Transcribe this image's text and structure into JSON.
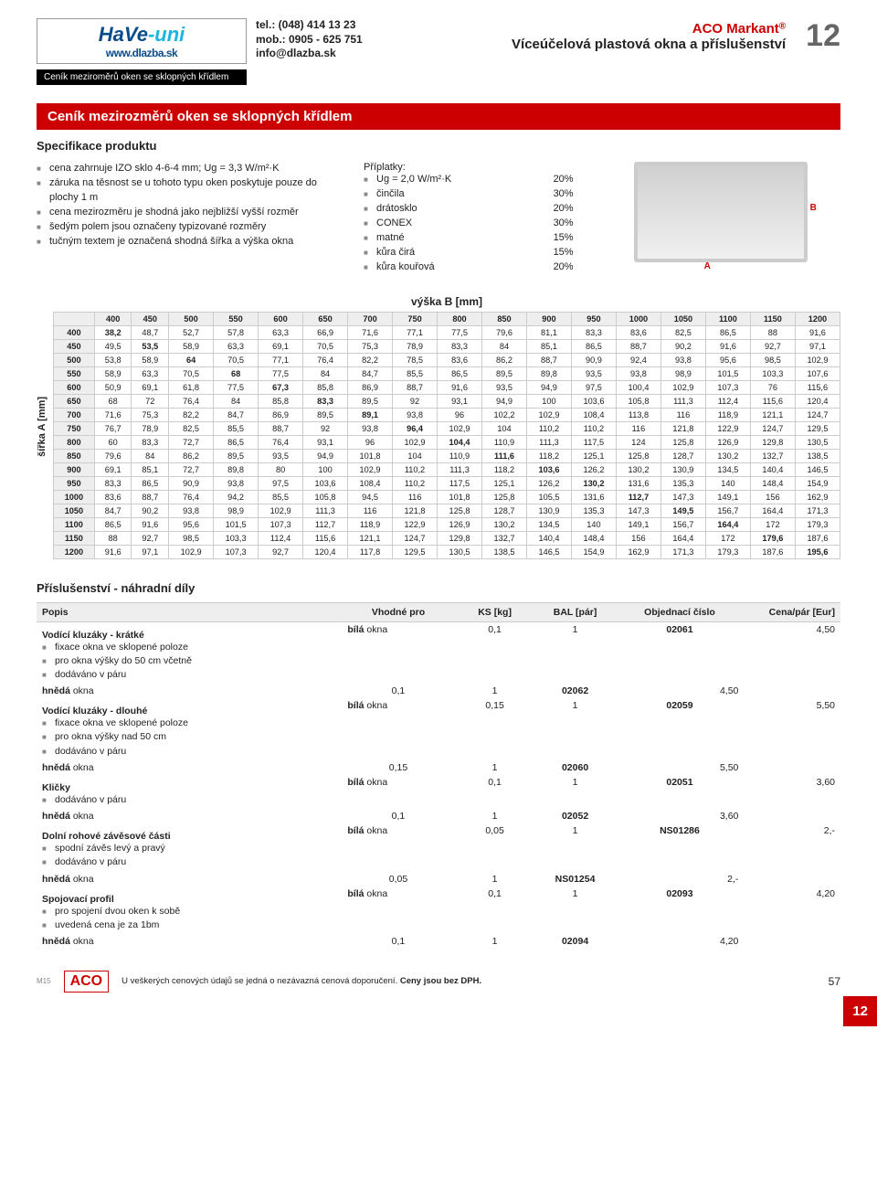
{
  "pageNumberLarge": "12",
  "pageNumberSmall": "57",
  "sideTab": "12",
  "editionCode": "M15",
  "header": {
    "logoMain": "HaVe",
    "logoSuffix": "-uni",
    "website": "www.dlazba.sk",
    "tel": "tel.: (048) 414 13 23",
    "mob": "mob.: 0905 - 625 751",
    "email": "info@dlazba.sk",
    "blackBand": "Ceník meziroměrů oken se sklopných křídlem",
    "brand": "ACO Markant",
    "brandReg": "®",
    "subtitle": "Víceúčelová plastová okna a příslušenství"
  },
  "redBand": "Ceník mezirozměrů oken se sklopných křídlem",
  "spec": {
    "title": "Specifikace produktu",
    "left": [
      "cena zahrnuje IZO sklo 4-6-4 mm; Ug = 3,3 W/m²·K",
      "záruka na těsnost se u tohoto typu oken poskytuje pouze do plochy 1 m",
      "cena mezirozměru je shodná jako nejbližší vyšší rozměr",
      "šedým polem jsou označeny typizované rozměry",
      "tučným textem je označená shodná šířka a výška okna"
    ],
    "surchargeTitle": "Příplatky:",
    "surcharges": [
      {
        "label": "Ug = 2,0 W/m²·K",
        "pct": "20%"
      },
      {
        "label": "činčila",
        "pct": "30%"
      },
      {
        "label": "drátosklo",
        "pct": "20%"
      },
      {
        "label": "CONEX",
        "pct": "30%"
      },
      {
        "label": "matné",
        "pct": "15%"
      },
      {
        "label": "kůra čirá",
        "pct": "15%"
      },
      {
        "label": "kůra kouřová",
        "pct": "20%"
      }
    ],
    "dimA": "A",
    "dimB": "B"
  },
  "priceTable": {
    "caption": "výška B [mm]",
    "rowAxisLabel": "šířka A [mm]",
    "colHeaders": [
      "400",
      "450",
      "500",
      "550",
      "600",
      "650",
      "700",
      "750",
      "800",
      "850",
      "900",
      "950",
      "1000",
      "1050",
      "1100",
      "1150",
      "1200"
    ],
    "rowHeaders": [
      "400",
      "450",
      "500",
      "550",
      "600",
      "650",
      "700",
      "750",
      "800",
      "850",
      "900",
      "950",
      "1000",
      "1050",
      "1100",
      "1150",
      "1200"
    ],
    "rows": [
      [
        "38,2",
        "48,7",
        "52,7",
        "57,8",
        "63,3",
        "66,9",
        "71,6",
        "77,1",
        "77,5",
        "79,6",
        "81,1",
        "83,3",
        "83,6",
        "82,5",
        "86,5",
        "88",
        "91,6"
      ],
      [
        "49,5",
        "53,5",
        "58,9",
        "63,3",
        "69,1",
        "70,5",
        "75,3",
        "78,9",
        "83,3",
        "84",
        "85,1",
        "86,5",
        "88,7",
        "90,2",
        "91,6",
        "92,7",
        "97,1"
      ],
      [
        "53,8",
        "58,9",
        "64",
        "70,5",
        "77,1",
        "76,4",
        "82,2",
        "78,5",
        "83,6",
        "86,2",
        "88,7",
        "90,9",
        "92,4",
        "93,8",
        "95,6",
        "98,5",
        "102,9"
      ],
      [
        "58,9",
        "63,3",
        "70,5",
        "68",
        "77,5",
        "84",
        "84,7",
        "85,5",
        "86,5",
        "89,5",
        "89,8",
        "93,5",
        "93,8",
        "98,9",
        "101,5",
        "103,3",
        "107,6"
      ],
      [
        "50,9",
        "69,1",
        "61,8",
        "77,5",
        "67,3",
        "85,8",
        "86,9",
        "88,7",
        "91,6",
        "93,5",
        "94,9",
        "97,5",
        "100,4",
        "102,9",
        "107,3",
        "76",
        "115,6"
      ],
      [
        "68",
        "72",
        "76,4",
        "84",
        "85,8",
        "83,3",
        "89,5",
        "92",
        "93,1",
        "94,9",
        "100",
        "103,6",
        "105,8",
        "111,3",
        "112,4",
        "115,6",
        "120,4"
      ],
      [
        "71,6",
        "75,3",
        "82,2",
        "84,7",
        "86,9",
        "89,5",
        "89,1",
        "93,8",
        "96",
        "102,2",
        "102,9",
        "108,4",
        "113,8",
        "116",
        "118,9",
        "121,1",
        "124,7"
      ],
      [
        "76,7",
        "78,9",
        "82,5",
        "85,5",
        "88,7",
        "92",
        "93,8",
        "96,4",
        "102,9",
        "104",
        "110,2",
        "110,2",
        "116",
        "121,8",
        "122,9",
        "124,7",
        "129,5"
      ],
      [
        "60",
        "83,3",
        "72,7",
        "86,5",
        "76,4",
        "93,1",
        "96",
        "102,9",
        "104,4",
        "110,9",
        "111,3",
        "117,5",
        "124",
        "125,8",
        "126,9",
        "129,8",
        "130,5"
      ],
      [
        "79,6",
        "84",
        "86,2",
        "89,5",
        "93,5",
        "94,9",
        "101,8",
        "104",
        "110,9",
        "111,6",
        "118,2",
        "125,1",
        "125,8",
        "128,7",
        "130,2",
        "132,7",
        "138,5"
      ],
      [
        "69,1",
        "85,1",
        "72,7",
        "89,8",
        "80",
        "100",
        "102,9",
        "110,2",
        "111,3",
        "118,2",
        "103,6",
        "126,2",
        "130,2",
        "130,9",
        "134,5",
        "140,4",
        "146,5"
      ],
      [
        "83,3",
        "86,5",
        "90,9",
        "93,8",
        "97,5",
        "103,6",
        "108,4",
        "110,2",
        "117,5",
        "125,1",
        "126,2",
        "130,2",
        "131,6",
        "135,3",
        "140",
        "148,4",
        "154,9"
      ],
      [
        "83,6",
        "88,7",
        "76,4",
        "94,2",
        "85,5",
        "105,8",
        "94,5",
        "116",
        "101,8",
        "125,8",
        "105,5",
        "131,6",
        "112,7",
        "147,3",
        "149,1",
        "156",
        "162,9"
      ],
      [
        "84,7",
        "90,2",
        "93,8",
        "98,9",
        "102,9",
        "111,3",
        "116",
        "121,8",
        "125,8",
        "128,7",
        "130,9",
        "135,3",
        "147,3",
        "149,5",
        "156,7",
        "164,4",
        "171,3"
      ],
      [
        "86,5",
        "91,6",
        "95,6",
        "101,5",
        "107,3",
        "112,7",
        "118,9",
        "122,9",
        "126,9",
        "130,2",
        "134,5",
        "140",
        "149,1",
        "156,7",
        "164,4",
        "172",
        "179,3"
      ],
      [
        "88",
        "92,7",
        "98,5",
        "103,3",
        "112,4",
        "115,6",
        "121,1",
        "124,7",
        "129,8",
        "132,7",
        "140,4",
        "148,4",
        "156",
        "164,4",
        "172",
        "179,6",
        "187,6"
      ],
      [
        "91,6",
        "97,1",
        "102,9",
        "107,3",
        "92,7",
        "120,4",
        "117,8",
        "129,5",
        "130,5",
        "138,5",
        "146,5",
        "154,9",
        "162,9",
        "171,3",
        "179,3",
        "187,6",
        "195,6"
      ]
    ]
  },
  "accessories": {
    "title": "Příslušenství - náhradní díly",
    "columns": [
      "Popis",
      "Vhodné pro",
      "KS [kg]",
      "BAL [pár]",
      "Objednací číslo",
      "Cena/pár [Eur]"
    ],
    "sections": [
      {
        "name": "Vodící kluzáky - krátké",
        "bullets": [
          "fixace okna ve sklopené poloze",
          "pro okna výšky do 50 cm včetně",
          "dodáváno v páru"
        ],
        "rows": [
          {
            "fit": "bílá okna",
            "ks": "0,1",
            "bal": "1",
            "code": "02061",
            "price": "4,50"
          },
          {
            "fit": "hnědá okna",
            "ks": "0,1",
            "bal": "1",
            "code": "02062",
            "price": "4,50"
          }
        ]
      },
      {
        "name": "Vodící kluzáky - dlouhé",
        "bullets": [
          "fixace okna ve sklopené poloze",
          "pro okna výšky nad 50 cm",
          "dodáváno v páru"
        ],
        "rows": [
          {
            "fit": "bílá okna",
            "ks": "0,15",
            "bal": "1",
            "code": "02059",
            "price": "5,50"
          },
          {
            "fit": "hnědá okna",
            "ks": "0,15",
            "bal": "1",
            "code": "02060",
            "price": "5,50"
          }
        ]
      },
      {
        "name": "Kličky",
        "bullets": [
          "dodáváno v páru"
        ],
        "rows": [
          {
            "fit": "bílá okna",
            "ks": "0,1",
            "bal": "1",
            "code": "02051",
            "price": "3,60"
          },
          {
            "fit": "hnědá okna",
            "ks": "0,1",
            "bal": "1",
            "code": "02052",
            "price": "3,60"
          }
        ]
      },
      {
        "name": "Dolní rohové závěsové části",
        "bullets": [
          "spodní závěs levý a pravý",
          "dodáváno v páru"
        ],
        "rows": [
          {
            "fit": "bílá okna",
            "ks": "0,05",
            "bal": "1",
            "code": "NS01286",
            "price": "2,-"
          },
          {
            "fit": "hnědá okna",
            "ks": "0,05",
            "bal": "1",
            "code": "NS01254",
            "price": "2,-"
          }
        ]
      },
      {
        "name": "Spojovací profil",
        "bullets": [
          "pro spojení dvou oken k sobě",
          "uvedená cena je za 1bm"
        ],
        "rows": [
          {
            "fit": "bílá okna",
            "ks": "0,1",
            "bal": "1",
            "code": "02093",
            "price": "4,20"
          },
          {
            "fit": "hnědá okna",
            "ks": "0,1",
            "bal": "1",
            "code": "02094",
            "price": "4,20"
          }
        ]
      }
    ]
  },
  "footer": {
    "aco": "ACO",
    "disclaimer": "U veškerých cenových údajů se jedná o nezávazná cenová doporučení.",
    "bold": "Ceny jsou bez DPH."
  },
  "colors": {
    "red": "#c00",
    "grey": "#eee",
    "border": "#ccc"
  }
}
